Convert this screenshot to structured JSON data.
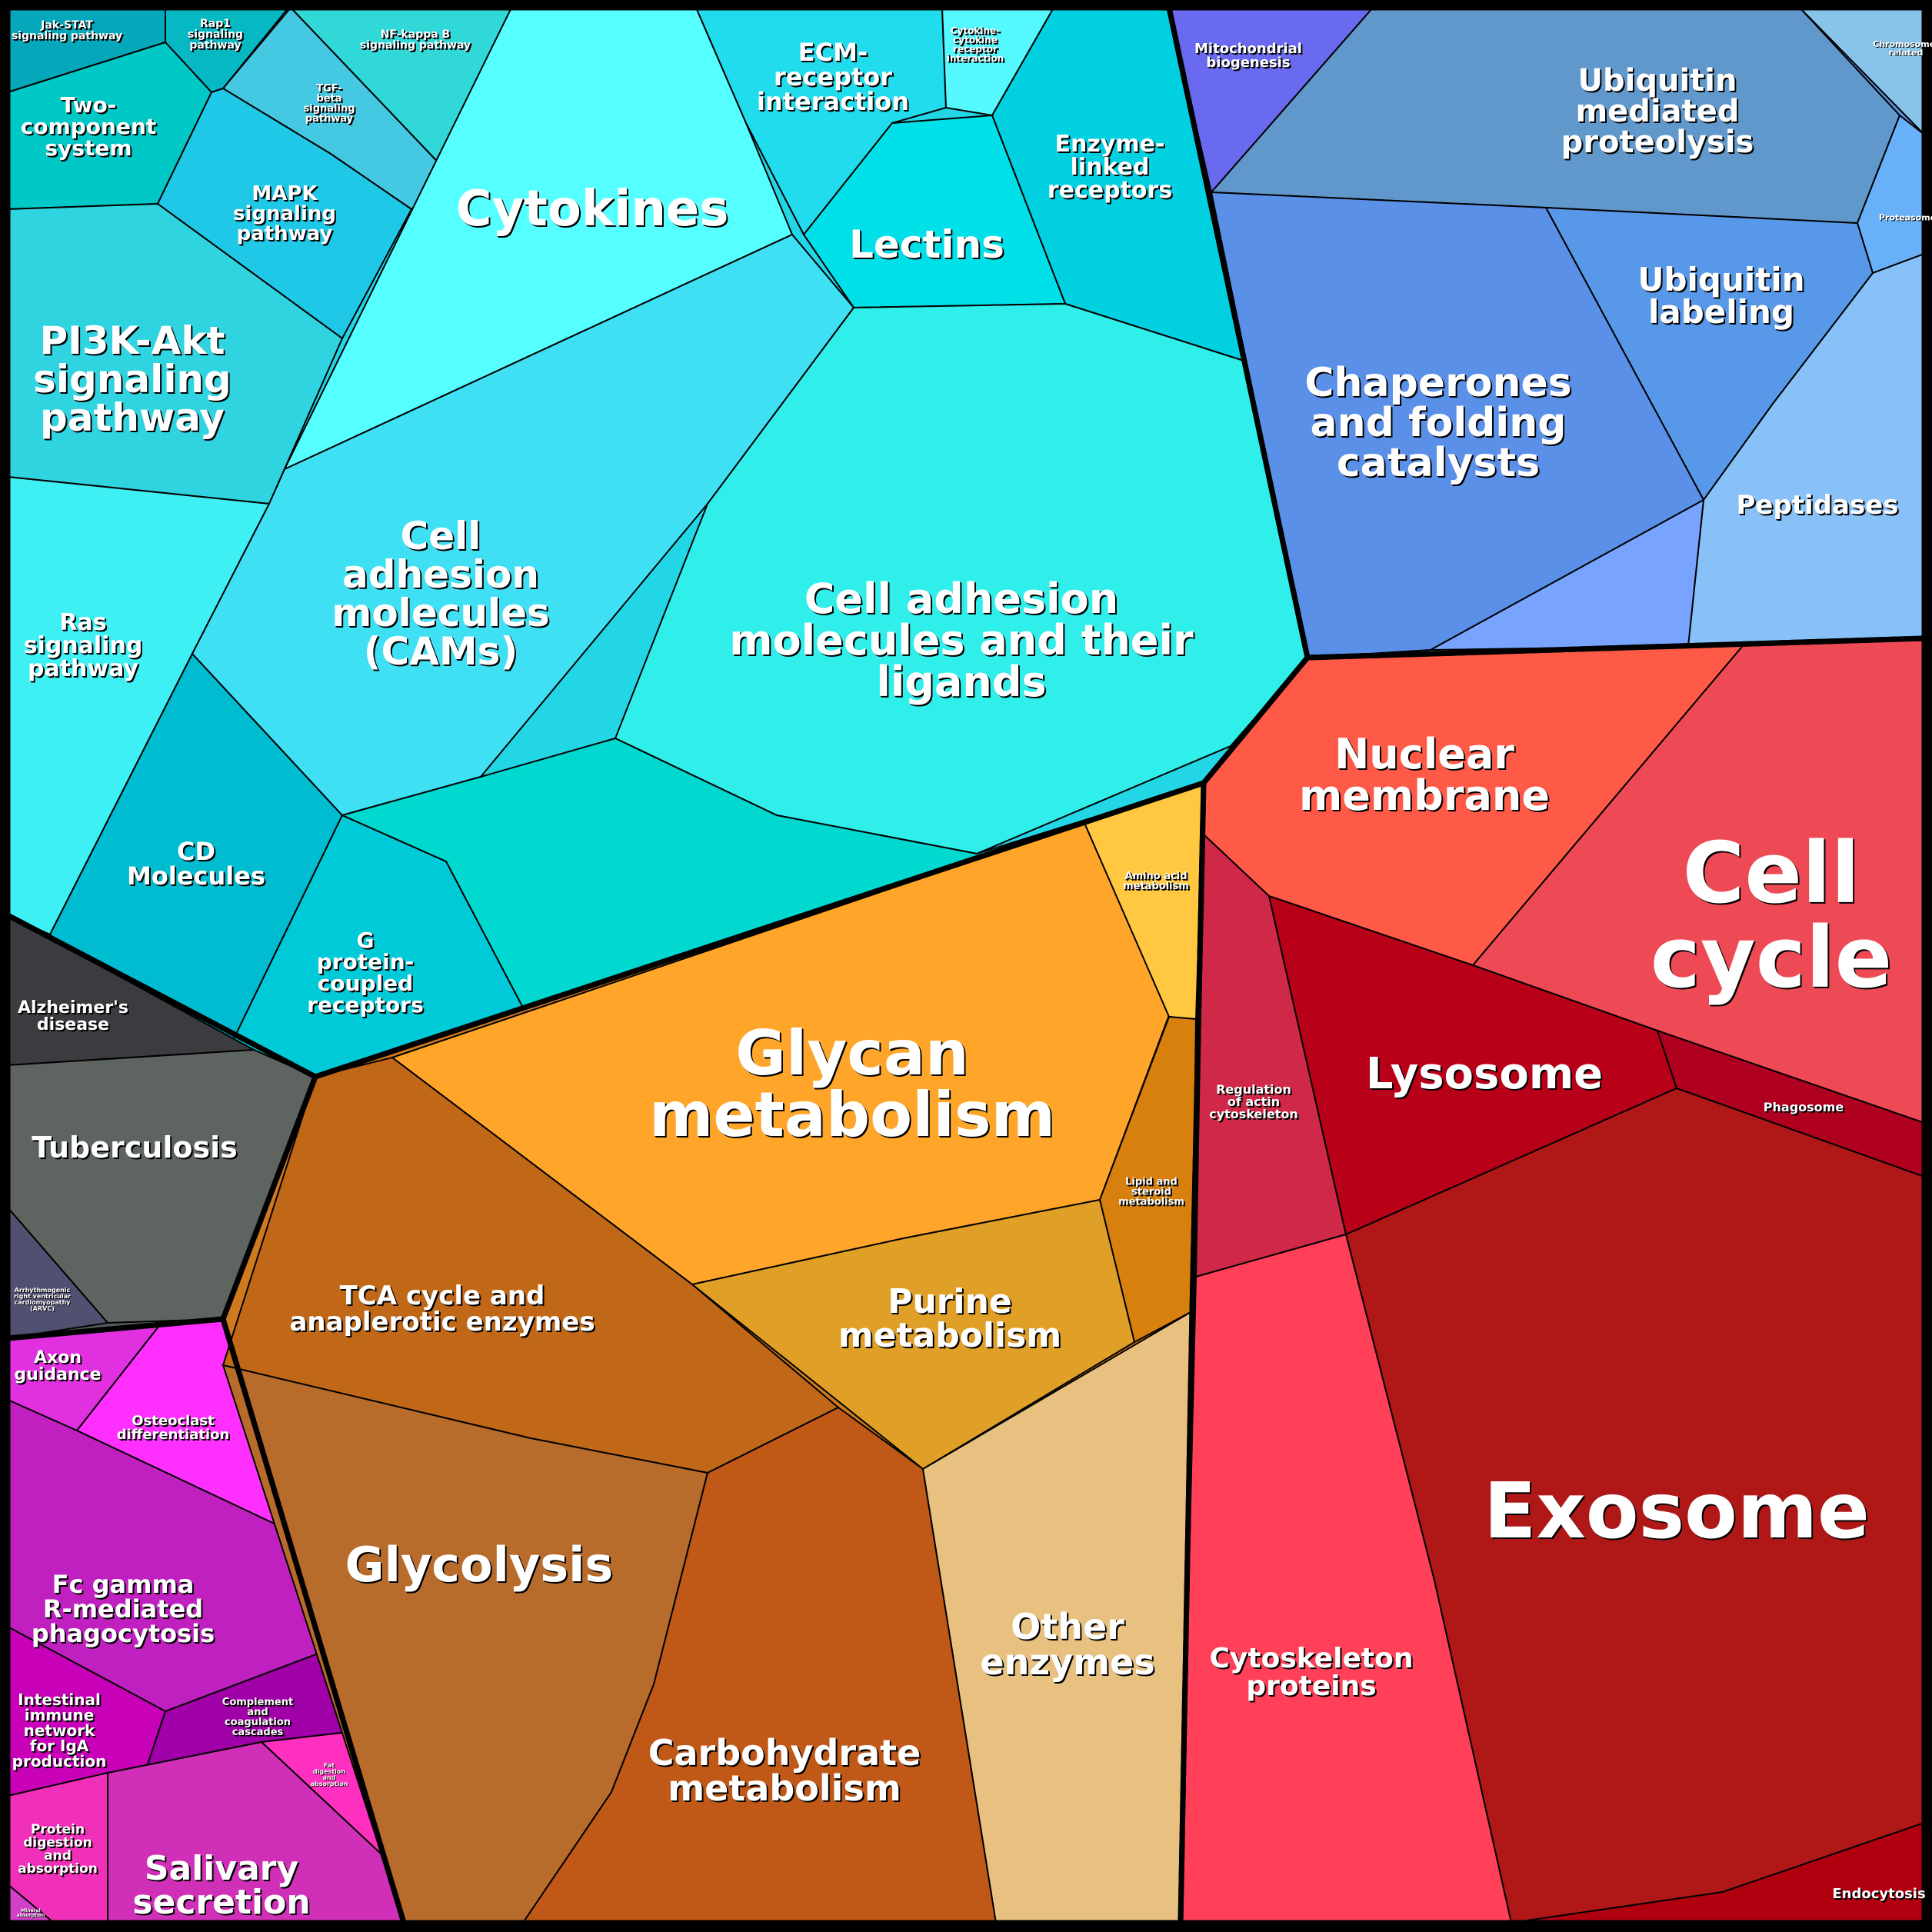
{
  "groups": [
    {
      "id": "cyan",
      "color": "#22d6e6"
    },
    {
      "id": "gray",
      "color": "#555a5a"
    },
    {
      "id": "magenta",
      "color": "#cc22cc"
    },
    {
      "id": "orange",
      "color": "#d07a20"
    },
    {
      "id": "blue",
      "color": "#5a90e0"
    },
    {
      "id": "red",
      "color": "#c01820"
    }
  ],
  "cells": [
    {
      "label": "Jak-STAT\nsignaling pathway",
      "color": "#05a8bb"
    },
    {
      "label": "Rap1\nsignaling\npathway",
      "color": "#06b8c2"
    },
    {
      "label": "NF-kappa B\nsignaling pathway",
      "color": "#30d8d8"
    },
    {
      "label": "TGF-\nbeta\nsignaling\npathway",
      "color": "#45c8e2"
    },
    {
      "label": "Two-\ncomponent\nsystem",
      "color": "#00c8c6"
    },
    {
      "label": "MAPK\nsignaling\npathway",
      "color": "#20c8e8"
    },
    {
      "label": "PI3K-Akt\nsignaling\npathway",
      "color": "#30d4e0"
    },
    {
      "label": "Ras\nsignaling\npathway",
      "color": "#3ef0f4"
    },
    {
      "label": "CD\nMolecules",
      "color": "#00bcd0"
    },
    {
      "label": "G\nprotein-\ncoupled\nreceptors",
      "color": "#00cad8"
    },
    {
      "label": "Cytokines",
      "color": "#55ffff"
    },
    {
      "label": "ECM-\nreceptor\ninteraction",
      "color": "#20dcec"
    },
    {
      "label": "Cytokine-\ncytokine\nreceptor\ninteraction",
      "color": "#55f8ff"
    },
    {
      "label": "Enzyme-\nlinked\nreceptors",
      "color": "#00d0e0"
    },
    {
      "label": "Lectins",
      "color": "#00e0e8"
    },
    {
      "label": "Cell\nadhesion\nmolecules\n(CAMs)",
      "color": "#40e0f4"
    },
    {
      "label": "Cell adhesion\nmolecules and their\nligands",
      "color": "#30eeea"
    },
    {
      "label": "",
      "color": "#00d8d0"
    },
    {
      "label": "Alzheimer's\ndisease",
      "color": "#3c3c40"
    },
    {
      "label": "Tuberculosis",
      "color": "#5e6460"
    },
    {
      "label": "Arrhythmogenic\nright ventricular\ncardiomyopathy\n(ARVC)",
      "color": "#505070"
    },
    {
      "label": "Axon\nguidance",
      "color": "#e030e0"
    },
    {
      "label": "Osteoclast\ndifferentiation",
      "color": "#ff30ff"
    },
    {
      "label": "Fc gamma\nR-mediated\nphagocytosis",
      "color": "#c020c0"
    },
    {
      "label": "Intestinal\nimmune\nnetwork\nfor IgA\nproduction",
      "color": "#c800b8"
    },
    {
      "label": "Complement\nand\ncoagulation\ncascades",
      "color": "#a000a8"
    },
    {
      "label": "Fat\ndigestion\nand\nabsorption",
      "color": "#ff30c0"
    },
    {
      "label": "Salivary\nsecretion",
      "color": "#d030b8"
    },
    {
      "label": "Protein\ndigestion\nand\nabsorption",
      "color": "#f030b8"
    },
    {
      "label": "Mineral\nabsorption",
      "color": "#d040c8"
    },
    {
      "label": "Glycan\nmetabolism",
      "color": "#ffa62a"
    },
    {
      "label": "Amino acid\nmetabolism",
      "color": "#ffc840"
    },
    {
      "label": "Lipid and\nsteroid\nmetabolism",
      "color": "#d8800e"
    },
    {
      "label": "Purine\nmetabolism",
      "color": "#e0a028"
    },
    {
      "label": "TCA cycle and\nanaplerotic enzymes",
      "color": "#c06818"
    },
    {
      "label": "Glycolysis",
      "color": "#b86c2c"
    },
    {
      "label": "Carbohydrate\nmetabolism",
      "color": "#c05818"
    },
    {
      "label": "Other\nenzymes",
      "color": "#e8c080"
    },
    {
      "label": "Mitochondrial\nbiogenesis",
      "color": "#6a6af0"
    },
    {
      "label": "Ubiquitin mediated\nproteolysis",
      "color": "#6098cc"
    },
    {
      "label": "Chromosome-\nrelated",
      "color": "#88c4ea"
    },
    {
      "label": "Proteasome",
      "color": "#68b0f8"
    },
    {
      "label": "Ubiquitin\nlabeling",
      "color": "#5898e8"
    },
    {
      "label": "Chaperones\nand folding\ncatalysts",
      "color": "#5a90e8"
    },
    {
      "label": "Peptidases",
      "color": "#88c0f8"
    },
    {
      "label": "",
      "color": "#78a4ff"
    },
    {
      "label": "Nuclear\nmembrane",
      "color": "#ff5a48"
    },
    {
      "label": "Cell\ncycle",
      "color": "#ee4a55"
    },
    {
      "label": "Regulation\nof actin\ncytoskeleton",
      "color": "#d02848"
    },
    {
      "label": "Lysosome",
      "color": "#b80018"
    },
    {
      "label": "Phagosome",
      "color": "#b00020"
    },
    {
      "label": "Exosome",
      "color": "#b01818"
    },
    {
      "label": "Cytoskeleton\nproteins",
      "color": "#ff4058"
    },
    {
      "label": "Endocytosis",
      "color": "#b00010"
    }
  ]
}
